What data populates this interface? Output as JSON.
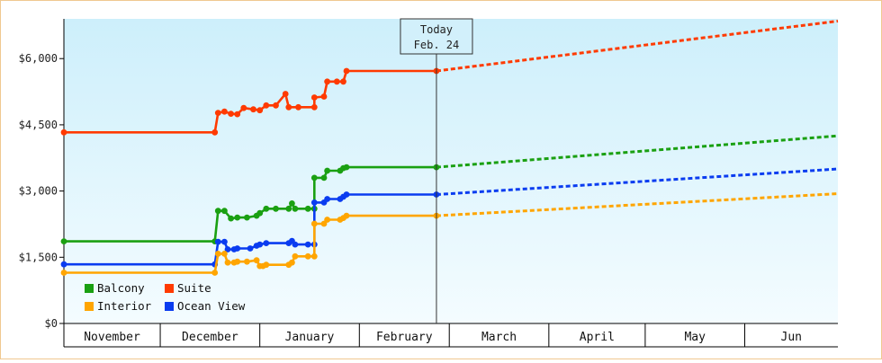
{
  "chart_data": {
    "type": "line",
    "title": "",
    "xlabel": "",
    "ylabel": "",
    "ylim": [
      0,
      6900
    ],
    "y_ticks": [
      {
        "value": 0,
        "label": "$0"
      },
      {
        "value": 1500,
        "label": "$1,500"
      },
      {
        "value": 3000,
        "label": "$3,000"
      },
      {
        "value": 4500,
        "label": "$4,500"
      },
      {
        "value": 6000,
        "label": "$6,000"
      }
    ],
    "x_axis": {
      "domain_days": [
        -116,
        125
      ],
      "months": [
        {
          "label": "November",
          "start": -116,
          "end": -86
        },
        {
          "label": "December",
          "start": -86,
          "end": -55
        },
        {
          "label": "January",
          "start": -55,
          "end": -24
        },
        {
          "label": "February",
          "start": -24,
          "end": 4
        },
        {
          "label": "March",
          "start": 4,
          "end": 35
        },
        {
          "label": "April",
          "start": 35,
          "end": 65
        },
        {
          "label": "May",
          "start": 65,
          "end": 96
        },
        {
          "label": "Jun",
          "start": 96,
          "end": 126
        }
      ]
    },
    "today": {
      "line1": "Today",
      "line2": "Feb. 24",
      "day": 0
    },
    "legend": {
      "placement": "bottom-left",
      "rows": [
        [
          "Balcony",
          "Suite"
        ],
        [
          "Interior",
          "Ocean View"
        ]
      ]
    },
    "series": [
      {
        "name": "Suite",
        "color": "#ff3a00",
        "actual": [
          [
            -116,
            4330
          ],
          [
            -69,
            4330
          ],
          [
            -68,
            4770
          ],
          [
            -66,
            4800
          ],
          [
            -64,
            4750
          ],
          [
            -62,
            4740
          ],
          [
            -60,
            4880
          ],
          [
            -57,
            4850
          ],
          [
            -55,
            4830
          ],
          [
            -53,
            4940
          ],
          [
            -50,
            4940
          ],
          [
            -47,
            5200
          ],
          [
            -46,
            4900
          ],
          [
            -43,
            4900
          ],
          [
            -38,
            4900
          ],
          [
            -38,
            5120
          ],
          [
            -35,
            5140
          ],
          [
            -34,
            5480
          ],
          [
            -31,
            5480
          ],
          [
            -29,
            5480
          ],
          [
            -28,
            5720
          ],
          [
            0,
            5720
          ]
        ],
        "forecast": [
          [
            0,
            5720
          ],
          [
            125,
            6850
          ]
        ]
      },
      {
        "name": "Balcony",
        "color": "#1aa012",
        "actual": [
          [
            -116,
            1860
          ],
          [
            -69,
            1860
          ],
          [
            -68,
            2550
          ],
          [
            -66,
            2550
          ],
          [
            -64,
            2380
          ],
          [
            -62,
            2400
          ],
          [
            -59,
            2400
          ],
          [
            -56,
            2440
          ],
          [
            -55,
            2500
          ],
          [
            -53,
            2600
          ],
          [
            -50,
            2600
          ],
          [
            -46,
            2600
          ],
          [
            -45,
            2720
          ],
          [
            -44,
            2600
          ],
          [
            -40,
            2600
          ],
          [
            -38,
            2600
          ],
          [
            -38,
            3300
          ],
          [
            -35,
            3300
          ],
          [
            -34,
            3460
          ],
          [
            -30,
            3460
          ],
          [
            -29,
            3520
          ],
          [
            -28,
            3540
          ],
          [
            0,
            3540
          ]
        ],
        "forecast": [
          [
            0,
            3540
          ],
          [
            125,
            4250
          ]
        ]
      },
      {
        "name": "Ocean View",
        "color": "#0a3cf0",
        "actual": [
          [
            -116,
            1340
          ],
          [
            -69,
            1340
          ],
          [
            -68,
            1850
          ],
          [
            -66,
            1850
          ],
          [
            -65,
            1680
          ],
          [
            -63,
            1680
          ],
          [
            -62,
            1700
          ],
          [
            -58,
            1700
          ],
          [
            -56,
            1760
          ],
          [
            -55,
            1790
          ],
          [
            -53,
            1820
          ],
          [
            -46,
            1820
          ],
          [
            -45,
            1870
          ],
          [
            -44,
            1790
          ],
          [
            -40,
            1790
          ],
          [
            -38,
            1790
          ],
          [
            -38,
            2740
          ],
          [
            -35,
            2740
          ],
          [
            -34,
            2820
          ],
          [
            -30,
            2820
          ],
          [
            -29,
            2870
          ],
          [
            -28,
            2920
          ],
          [
            0,
            2920
          ]
        ],
        "forecast": [
          [
            0,
            2920
          ],
          [
            125,
            3500
          ]
        ]
      },
      {
        "name": "Interior",
        "color": "#ffa500",
        "actual": [
          [
            -116,
            1150
          ],
          [
            -69,
            1150
          ],
          [
            -68,
            1580
          ],
          [
            -66,
            1580
          ],
          [
            -65,
            1380
          ],
          [
            -63,
            1380
          ],
          [
            -62,
            1400
          ],
          [
            -59,
            1400
          ],
          [
            -56,
            1430
          ],
          [
            -55,
            1300
          ],
          [
            -54,
            1300
          ],
          [
            -53,
            1330
          ],
          [
            -46,
            1330
          ],
          [
            -45,
            1380
          ],
          [
            -44,
            1520
          ],
          [
            -40,
            1520
          ],
          [
            -38,
            1520
          ],
          [
            -38,
            2260
          ],
          [
            -35,
            2260
          ],
          [
            -34,
            2350
          ],
          [
            -30,
            2350
          ],
          [
            -29,
            2390
          ],
          [
            -28,
            2440
          ],
          [
            0,
            2440
          ]
        ],
        "forecast": [
          [
            0,
            2440
          ],
          [
            125,
            2940
          ]
        ]
      }
    ]
  }
}
